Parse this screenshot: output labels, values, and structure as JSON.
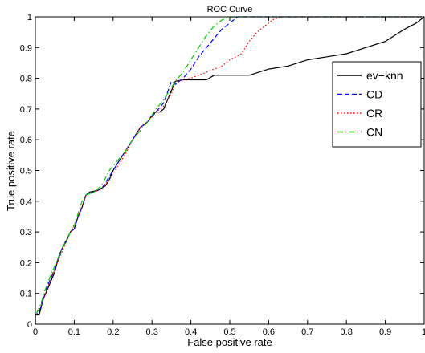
{
  "chart_data": {
    "type": "line",
    "title": "ROC Curve",
    "xlabel": "False positive rate",
    "ylabel": "True positive rate",
    "xlim": [
      0,
      1
    ],
    "ylim": [
      0,
      1
    ],
    "xticks": [
      "0",
      "0.1",
      "0.2",
      "0.3",
      "0.4",
      "0.5",
      "0.6",
      "0.7",
      "0.8",
      "0.9",
      "1"
    ],
    "yticks": [
      "0",
      "0.1",
      "0.2",
      "0.3",
      "0.4",
      "0.5",
      "0.6",
      "0.7",
      "0.8",
      "0.9",
      "1"
    ],
    "grid": false,
    "legend_position": "top-right",
    "series": [
      {
        "name": "ev−knn",
        "color": "#000000",
        "dash": "solid",
        "points": [
          [
            0,
            0
          ],
          [
            0,
            0.03
          ],
          [
            0.01,
            0.03
          ],
          [
            0.02,
            0.08
          ],
          [
            0.03,
            0.11
          ],
          [
            0.04,
            0.14
          ],
          [
            0.05,
            0.17
          ],
          [
            0.06,
            0.22
          ],
          [
            0.07,
            0.25
          ],
          [
            0.08,
            0.27
          ],
          [
            0.09,
            0.3
          ],
          [
            0.1,
            0.31
          ],
          [
            0.11,
            0.35
          ],
          [
            0.12,
            0.38
          ],
          [
            0.13,
            0.42
          ],
          [
            0.14,
            0.43
          ],
          [
            0.16,
            0.435
          ],
          [
            0.18,
            0.45
          ],
          [
            0.19,
            0.47
          ],
          [
            0.2,
            0.5
          ],
          [
            0.21,
            0.52
          ],
          [
            0.22,
            0.54
          ],
          [
            0.23,
            0.56
          ],
          [
            0.24,
            0.58
          ],
          [
            0.25,
            0.6
          ],
          [
            0.26,
            0.62
          ],
          [
            0.27,
            0.64
          ],
          [
            0.28,
            0.65
          ],
          [
            0.29,
            0.66
          ],
          [
            0.3,
            0.68
          ],
          [
            0.31,
            0.69
          ],
          [
            0.32,
            0.69
          ],
          [
            0.33,
            0.7
          ],
          [
            0.34,
            0.73
          ],
          [
            0.35,
            0.76
          ],
          [
            0.36,
            0.79
          ],
          [
            0.38,
            0.795
          ],
          [
            0.44,
            0.795
          ],
          [
            0.46,
            0.81
          ],
          [
            0.55,
            0.81
          ],
          [
            0.6,
            0.83
          ],
          [
            0.65,
            0.84
          ],
          [
            0.7,
            0.86
          ],
          [
            0.75,
            0.87
          ],
          [
            0.8,
            0.88
          ],
          [
            0.85,
            0.9
          ],
          [
            0.9,
            0.92
          ],
          [
            0.95,
            0.96
          ],
          [
            0.98,
            0.98
          ],
          [
            1,
            1
          ]
        ]
      },
      {
        "name": "CD",
        "color": "#0000ff",
        "dash": "dashed",
        "points": [
          [
            0,
            0
          ],
          [
            0,
            0.03
          ],
          [
            0.01,
            0.04
          ],
          [
            0.02,
            0.08
          ],
          [
            0.03,
            0.12
          ],
          [
            0.05,
            0.18
          ],
          [
            0.07,
            0.25
          ],
          [
            0.09,
            0.3
          ],
          [
            0.1,
            0.31
          ],
          [
            0.11,
            0.35
          ],
          [
            0.12,
            0.38
          ],
          [
            0.13,
            0.42
          ],
          [
            0.15,
            0.43
          ],
          [
            0.17,
            0.44
          ],
          [
            0.19,
            0.48
          ],
          [
            0.21,
            0.52
          ],
          [
            0.23,
            0.56
          ],
          [
            0.25,
            0.6
          ],
          [
            0.27,
            0.64
          ],
          [
            0.29,
            0.66
          ],
          [
            0.31,
            0.69
          ],
          [
            0.33,
            0.72
          ],
          [
            0.35,
            0.79
          ],
          [
            0.36,
            0.78
          ],
          [
            0.38,
            0.8
          ],
          [
            0.4,
            0.83
          ],
          [
            0.42,
            0.87
          ],
          [
            0.44,
            0.9
          ],
          [
            0.46,
            0.93
          ],
          [
            0.48,
            0.96
          ],
          [
            0.5,
            0.98
          ],
          [
            0.52,
            1
          ],
          [
            1,
            1
          ]
        ]
      },
      {
        "name": "CR",
        "color": "#ff0000",
        "dash": "dotted",
        "points": [
          [
            0,
            0
          ],
          [
            0,
            0.03
          ],
          [
            0.02,
            0.08
          ],
          [
            0.05,
            0.18
          ],
          [
            0.07,
            0.24
          ],
          [
            0.09,
            0.3
          ],
          [
            0.11,
            0.35
          ],
          [
            0.13,
            0.42
          ],
          [
            0.15,
            0.43
          ],
          [
            0.17,
            0.44
          ],
          [
            0.19,
            0.47
          ],
          [
            0.21,
            0.51
          ],
          [
            0.23,
            0.55
          ],
          [
            0.25,
            0.6
          ],
          [
            0.27,
            0.64
          ],
          [
            0.29,
            0.66
          ],
          [
            0.31,
            0.69
          ],
          [
            0.33,
            0.71
          ],
          [
            0.35,
            0.75
          ],
          [
            0.36,
            0.79
          ],
          [
            0.4,
            0.8
          ],
          [
            0.44,
            0.82
          ],
          [
            0.48,
            0.84
          ],
          [
            0.5,
            0.86
          ],
          [
            0.53,
            0.88
          ],
          [
            0.55,
            0.92
          ],
          [
            0.57,
            0.95
          ],
          [
            0.59,
            0.97
          ],
          [
            0.61,
            0.99
          ],
          [
            0.63,
            1
          ],
          [
            1,
            1
          ]
        ]
      },
      {
        "name": "CN",
        "color": "#00cc00",
        "dash": "dashdot",
        "points": [
          [
            0,
            0
          ],
          [
            0,
            0.03
          ],
          [
            0.01,
            0.05
          ],
          [
            0.02,
            0.09
          ],
          [
            0.03,
            0.13
          ],
          [
            0.05,
            0.19
          ],
          [
            0.07,
            0.25
          ],
          [
            0.09,
            0.3
          ],
          [
            0.1,
            0.32
          ],
          [
            0.11,
            0.36
          ],
          [
            0.12,
            0.4
          ],
          [
            0.13,
            0.42
          ],
          [
            0.15,
            0.43
          ],
          [
            0.17,
            0.45
          ],
          [
            0.19,
            0.5
          ],
          [
            0.21,
            0.53
          ],
          [
            0.23,
            0.56
          ],
          [
            0.25,
            0.6
          ],
          [
            0.27,
            0.63
          ],
          [
            0.29,
            0.66
          ],
          [
            0.31,
            0.7
          ],
          [
            0.33,
            0.73
          ],
          [
            0.35,
            0.77
          ],
          [
            0.36,
            0.79
          ],
          [
            0.38,
            0.82
          ],
          [
            0.4,
            0.86
          ],
          [
            0.42,
            0.9
          ],
          [
            0.44,
            0.94
          ],
          [
            0.46,
            0.97
          ],
          [
            0.48,
            0.99
          ],
          [
            0.5,
            1
          ],
          [
            1,
            1
          ]
        ]
      }
    ]
  }
}
